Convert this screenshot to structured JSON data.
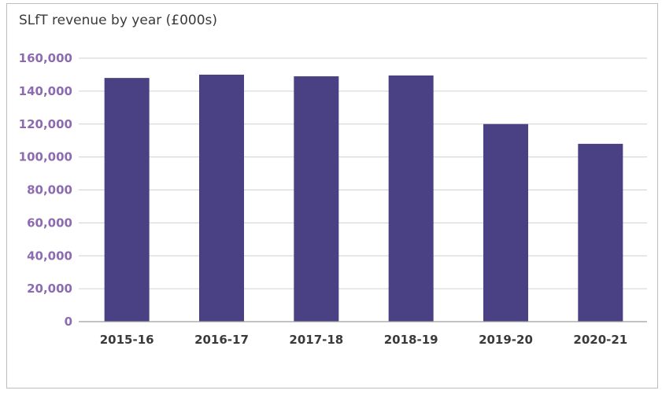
{
  "chart_data": {
    "type": "bar",
    "title": "SLfT revenue by year (£000s)",
    "xlabel": "",
    "ylabel": "",
    "categories": [
      "2015-16",
      "2016-17",
      "2017-18",
      "2018-19",
      "2019-20",
      "2020-21"
    ],
    "values": [
      148000,
      150000,
      149000,
      149500,
      120000,
      108000
    ],
    "ylim": [
      0,
      160000
    ],
    "yticks": [
      0,
      20000,
      40000,
      60000,
      80000,
      100000,
      120000,
      140000,
      160000
    ],
    "ytick_labels": [
      "0",
      "20,000",
      "40,000",
      "60,000",
      "80,000",
      "100,000",
      "120,000",
      "140,000",
      "160,000"
    ],
    "grid": true,
    "legend": "none",
    "colors": {
      "bar": "#4a4184",
      "ytick_text": "#8c6bb1",
      "grid": "#d0d0d0",
      "axis": "#9e9e9e"
    }
  }
}
